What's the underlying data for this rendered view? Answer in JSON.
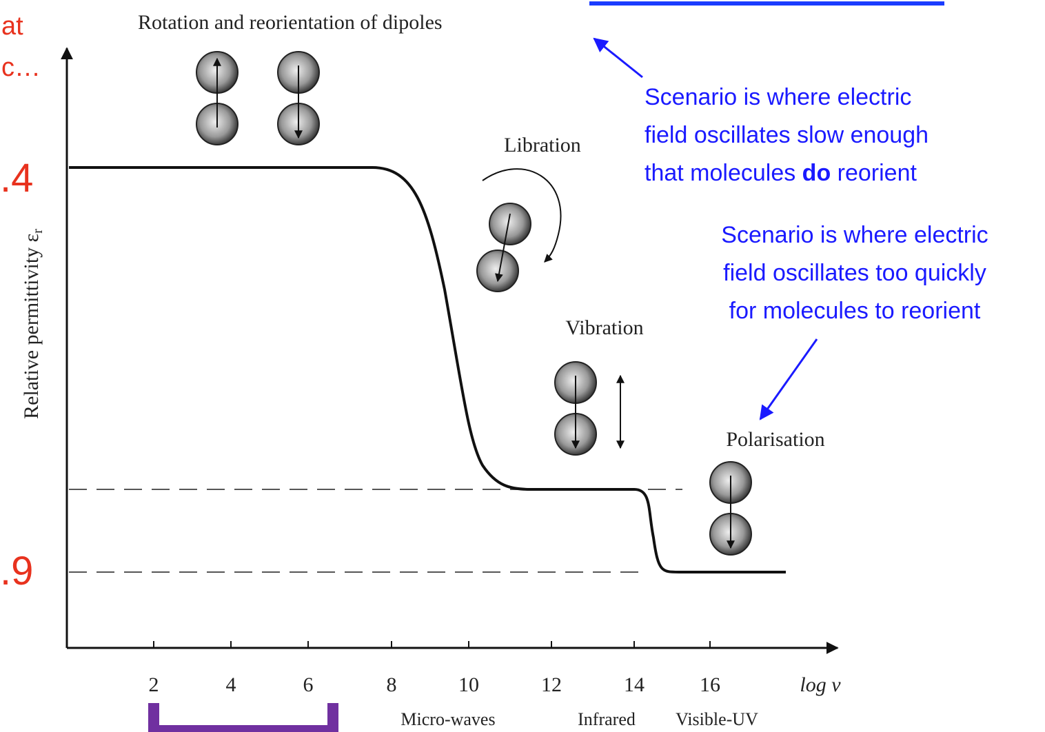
{
  "figure": {
    "title": "Rotation and reorientation of dipoles",
    "y_label": {
      "text": "Relative permittivity ε",
      "sub": "r"
    },
    "x_label": "log ν",
    "x_ticks": [
      2,
      4,
      6,
      8,
      10,
      12,
      14,
      16
    ],
    "bands": [
      "Micro-waves",
      "Infrared",
      "Visible-UV"
    ],
    "regimes": [
      "Libration",
      "Vibration",
      "Polarisation"
    ]
  },
  "side_text": [
    "at",
    "c…",
    ".4",
    ".9"
  ],
  "annotations": {
    "slow": {
      "line1": "Scenario is where electric",
      "line2": "field oscillates slow enough",
      "line3_pre": "that molecules ",
      "line3_bold": "do",
      "line3_post": " reorient"
    },
    "fast": [
      "Scenario is where electric",
      "field oscillates too quickly",
      "for molecules to reorient"
    ]
  }
}
